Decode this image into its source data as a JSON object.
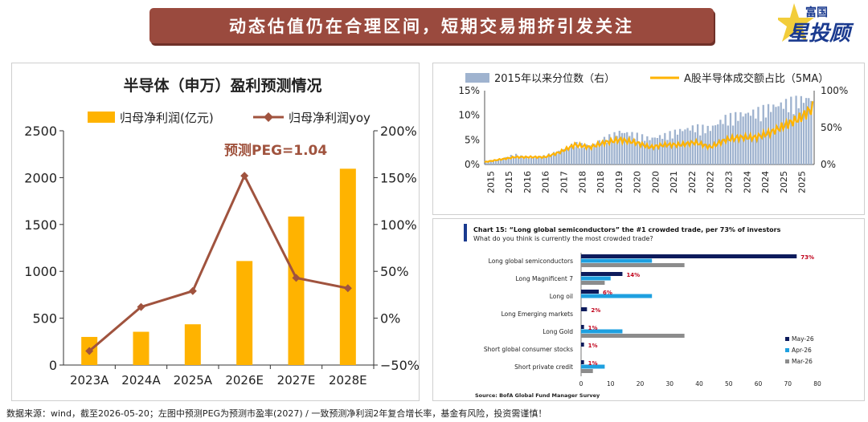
{
  "banner": {
    "title": "动态估值仍在合理区间，短期交易拥挤引发关注"
  },
  "logo": {
    "line1": "富国",
    "line2": "星投顾"
  },
  "footnote": "数据来源：wind，截至2026-05-20；左图中预测PEG为预测市盈率(2027) / 一致预测净利润2年复合增长率，基金有风险，投资需谨慎！",
  "colors": {
    "orange": "#ffb300",
    "brown": "#a0533e",
    "grey_bar": "#9fb3cf",
    "navy": "#0d1b5c",
    "cyan": "#1ea0e0",
    "grey": "#8c8c8c",
    "red": "#c0001a"
  },
  "chart_data": [
    {
      "type": "bar",
      "title": "半导体（申万）盈利预测情况",
      "annotation": "预测PEG=1.04",
      "categories": [
        "2023A",
        "2024A",
        "2025A",
        "2026E",
        "2027E",
        "2028E"
      ],
      "series": [
        {
          "name": "归母净利润(亿元)",
          "type": "bar",
          "axis": "left",
          "values": [
            300,
            355,
            435,
            1110,
            1585,
            2095
          ]
        },
        {
          "name": "归母净利润yoy",
          "type": "line",
          "axis": "right",
          "values": [
            -35,
            12,
            29,
            152,
            43,
            32
          ]
        }
      ],
      "ylim_left": [
        0,
        2500
      ],
      "yticks_left": [
        "0",
        "500",
        "1000",
        "1500",
        "2000",
        "2500"
      ],
      "ylim_right": [
        -50,
        200
      ],
      "yticks_right": [
        "−50%",
        "0%",
        "50%",
        "100%",
        "150%",
        "200%"
      ]
    },
    {
      "type": "area",
      "legend": [
        {
          "name": "2015年以来分位数（右）"
        },
        {
          "name": "A股半导体成交额占比（5MA）"
        }
      ],
      "xticks": [
        "2015",
        "2015",
        "2016",
        "2016",
        "2017",
        "2018",
        "2018",
        "2019",
        "2020",
        "2020",
        "2021",
        "2022",
        "2022",
        "2023",
        "2024",
        "2024",
        "2025",
        "2025"
      ],
      "yticks_left": [
        "0%",
        "5%",
        "10%",
        "15%"
      ],
      "yticks_right": [
        "0%",
        "50%",
        "100%"
      ],
      "ylim_left": [
        0,
        15
      ],
      "ylim_right": [
        0,
        100
      ],
      "x_years": [
        2015.0,
        2015.5,
        2016.0,
        2016.5,
        2017.0,
        2017.5,
        2018.0,
        2018.5,
        2019.0,
        2019.5,
        2020.0,
        2020.5,
        2021.0,
        2021.5,
        2022.0,
        2022.5,
        2023.0,
        2023.5,
        2024.0,
        2024.5,
        2025.0,
        2025.5,
        2025.9
      ],
      "share_pct": [
        0.5,
        1.0,
        1.5,
        1.5,
        1.5,
        2.5,
        4.0,
        3.5,
        4.5,
        5.0,
        4.5,
        3.5,
        4.0,
        4.0,
        4.5,
        3.5,
        5.0,
        5.5,
        5.5,
        6.5,
        8.0,
        9.5,
        11.5
      ],
      "percentile_pct": [
        3,
        7,
        15,
        9,
        13,
        20,
        31,
        27,
        38,
        48,
        44,
        38,
        43,
        50,
        55,
        53,
        68,
        73,
        77,
        84,
        90,
        95,
        98
      ]
    },
    {
      "type": "bar",
      "title": "Chart 15: “Long global semiconductors” the #1 crowded trade, per 73% of investors",
      "subtitle": "What do you think is currently the most crowded trade?",
      "source": "Source: BofA Global Fund Manager Survey",
      "categories": [
        "Long global semiconductors",
        "Long Magnificent 7",
        "Long oil",
        "Long Emerging markets",
        "Long Gold",
        "Short global consumer stocks",
        "Short private credit"
      ],
      "series": [
        {
          "name": "May-26",
          "values": [
            73,
            14,
            6,
            2,
            1,
            1,
            1
          ]
        },
        {
          "name": "Apr-26",
          "values": [
            24,
            10,
            24,
            0,
            14,
            0,
            8
          ]
        },
        {
          "name": "Mar-26",
          "values": [
            35,
            8,
            0,
            0,
            35,
            0,
            4
          ]
        }
      ],
      "data_labels": [
        "73%",
        "14%",
        "6%",
        "2%",
        "1%",
        "1%",
        "1%"
      ],
      "xlim": [
        0,
        80
      ],
      "xticks": [
        "0",
        "10",
        "20",
        "30",
        "40",
        "50",
        "60",
        "70",
        "80"
      ]
    }
  ]
}
